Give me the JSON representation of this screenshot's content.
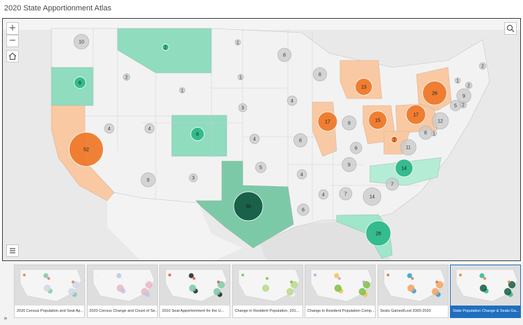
{
  "app": {
    "title": "2020 State Apportionment Atlas"
  },
  "controls": {
    "zoom_in": "+",
    "zoom_out": "−",
    "home_icon": "home-icon",
    "search_icon": "search-icon",
    "layers_icon": "list-icon",
    "collapse_icon": "double-chevron-down-icon",
    "collapse_glyph": "»"
  },
  "colors": {
    "gained": "#7fd8b6",
    "lost": "#f9c59a",
    "unchanged": "#f1f1f1",
    "gain_circle": "#2fb88a",
    "gain_circle_dark": "#145c42",
    "lost_circle": "#ee7a2c",
    "unchanged_circle": "#c9c9c9",
    "active_card": "#1f6fbf"
  },
  "legend_states": {
    "gained": [
      "Oregon",
      "Montana",
      "Colorado",
      "Texas",
      "North Carolina",
      "Florida"
    ],
    "lost": [
      "California",
      "Illinois",
      "Michigan",
      "Ohio",
      "Pennsylvania",
      "West Virginia",
      "New York"
    ]
  },
  "seats": [
    {
      "state": "WA",
      "seats": "10",
      "status": "none"
    },
    {
      "state": "OR",
      "seats": "6",
      "status": "gained"
    },
    {
      "state": "CA",
      "seats": "52",
      "status": "lost"
    },
    {
      "state": "ID",
      "seats": "2",
      "status": "none"
    },
    {
      "state": "NV",
      "seats": "4",
      "status": "none"
    },
    {
      "state": "MT",
      "seats": "2",
      "status": "gained"
    },
    {
      "state": "WY",
      "seats": "1",
      "status": "none"
    },
    {
      "state": "UT",
      "seats": "4",
      "status": "none"
    },
    {
      "state": "CO",
      "seats": "8",
      "status": "gained"
    },
    {
      "state": "AZ",
      "seats": "9",
      "status": "none"
    },
    {
      "state": "NM",
      "seats": "3",
      "status": "none"
    },
    {
      "state": "ND",
      "seats": "1",
      "status": "none"
    },
    {
      "state": "SD",
      "seats": "1",
      "status": "none"
    },
    {
      "state": "NE",
      "seats": "3",
      "status": "none"
    },
    {
      "state": "KS",
      "seats": "4",
      "status": "none"
    },
    {
      "state": "OK",
      "seats": "5",
      "status": "none"
    },
    {
      "state": "TX",
      "seats": "38",
      "status": "gained"
    },
    {
      "state": "MN",
      "seats": "8",
      "status": "none"
    },
    {
      "state": "IA",
      "seats": "4",
      "status": "none"
    },
    {
      "state": "MO",
      "seats": "8",
      "status": "none"
    },
    {
      "state": "AR",
      "seats": "4",
      "status": "none"
    },
    {
      "state": "LA",
      "seats": "6",
      "status": "none"
    },
    {
      "state": "WI",
      "seats": "8",
      "status": "none"
    },
    {
      "state": "IL",
      "seats": "17",
      "status": "lost"
    },
    {
      "state": "MI",
      "seats": "13",
      "status": "lost"
    },
    {
      "state": "IN",
      "seats": "9",
      "status": "none"
    },
    {
      "state": "OH",
      "seats": "15",
      "status": "lost"
    },
    {
      "state": "KY",
      "seats": "6",
      "status": "none"
    },
    {
      "state": "TN",
      "seats": "9",
      "status": "none"
    },
    {
      "state": "MS",
      "seats": "4",
      "status": "none"
    },
    {
      "state": "AL",
      "seats": "7",
      "status": "none"
    },
    {
      "state": "GA",
      "seats": "14",
      "status": "none"
    },
    {
      "state": "FL",
      "seats": "28",
      "status": "gained"
    },
    {
      "state": "SC",
      "seats": "7",
      "status": "none"
    },
    {
      "state": "NC",
      "seats": "14",
      "status": "gained"
    },
    {
      "state": "VA",
      "seats": "11",
      "status": "none"
    },
    {
      "state": "WV",
      "seats": "2",
      "status": "lost"
    },
    {
      "state": "PA",
      "seats": "17",
      "status": "lost"
    },
    {
      "state": "NY",
      "seats": "26",
      "status": "lost"
    },
    {
      "state": "MD",
      "seats": "8",
      "status": "none"
    },
    {
      "state": "DE",
      "seats": "1",
      "status": "none"
    },
    {
      "state": "NJ",
      "seats": "12",
      "status": "none"
    },
    {
      "state": "CT",
      "seats": "5",
      "status": "none"
    },
    {
      "state": "RI",
      "seats": "2",
      "status": "none"
    },
    {
      "state": "MA",
      "seats": "9",
      "status": "none"
    },
    {
      "state": "VT",
      "seats": "1",
      "status": "none"
    },
    {
      "state": "NH",
      "seats": "2",
      "status": "none"
    },
    {
      "state": "ME",
      "seats": "2",
      "status": "none"
    }
  ],
  "story_cards": [
    {
      "label": "2020 Census Population and Seat Ap...",
      "active": false
    },
    {
      "label": "2020 Census Change and Count of Se...",
      "active": false
    },
    {
      "label": "2010 Seat Apportionment for the U...",
      "active": false
    },
    {
      "label": "Change in Resident Population, 201...",
      "active": false
    },
    {
      "label": "Change in Resident Population Comp...",
      "active": false
    },
    {
      "label": "Seats Gained/Lost 2000-2020",
      "active": false
    },
    {
      "label": "State Population Change & Seats Ga...",
      "active": true
    }
  ]
}
